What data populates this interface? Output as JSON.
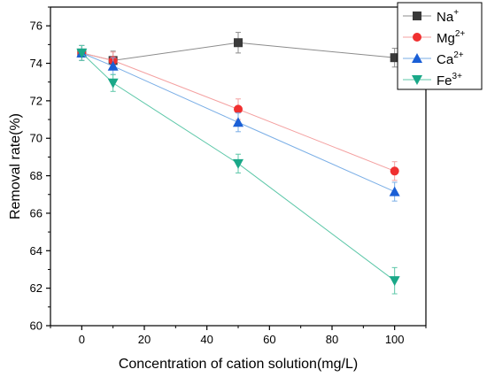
{
  "chart_data": {
    "type": "line",
    "title": "",
    "xlabel": "Concentration of cation solution(mg/L)",
    "ylabel": "Removal rate(%)",
    "xlim": [
      -10,
      110
    ],
    "ylim": [
      60,
      77
    ],
    "x_ticks": [
      0,
      20,
      40,
      60,
      80,
      100
    ],
    "y_ticks": [
      60,
      62,
      64,
      66,
      68,
      70,
      72,
      74,
      76
    ],
    "grid": false,
    "legend_position": "top-right",
    "x": [
      0,
      10,
      50,
      100
    ],
    "series": [
      {
        "name": "Na",
        "superscript": "+",
        "marker": "square",
        "color": "#3a3a3a",
        "line_color": "#8c8c8c",
        "values": [
          74.55,
          74.15,
          75.1,
          74.3
        ],
        "errors": [
          0.4,
          0.5,
          0.55,
          0.5
        ]
      },
      {
        "name": "Mg",
        "superscript": "2+",
        "marker": "circle",
        "color": "#f03030",
        "line_color": "#f4a0a0",
        "values": [
          74.55,
          74.15,
          71.55,
          68.25
        ],
        "errors": [
          0.4,
          0.45,
          0.55,
          0.5
        ]
      },
      {
        "name": "Ca",
        "superscript": "2+",
        "marker": "triangle-up",
        "color": "#1a5fd6",
        "line_color": "#7aaee6",
        "values": [
          74.55,
          73.85,
          70.85,
          67.15
        ],
        "errors": [
          0.4,
          0.45,
          0.5,
          0.5
        ]
      },
      {
        "name": "Fe",
        "superscript": "3+",
        "marker": "triangle-down",
        "color": "#1aa888",
        "line_color": "#5cc7a8",
        "values": [
          74.55,
          72.95,
          68.65,
          62.4
        ],
        "errors": [
          0.4,
          0.45,
          0.5,
          0.7
        ]
      }
    ]
  }
}
